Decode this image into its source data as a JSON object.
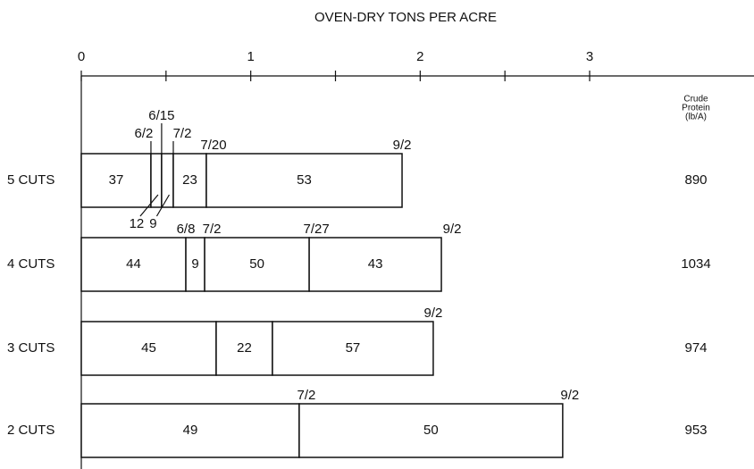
{
  "chart_data": {
    "type": "stacked-bar-horizontal",
    "title": "OVEN-DRY TONS PER ACRE",
    "xlim": [
      0,
      3.97
    ],
    "xticks": [
      0,
      1,
      2,
      3
    ],
    "minor_xticks": [
      0.5,
      1.5,
      2.5
    ],
    "categories": [
      "5 CUTS",
      "4 CUTS",
      "3 CUTS",
      "2 CUTS"
    ],
    "bars": [
      {
        "values": [
          0.411,
          0.063,
          0.069,
          0.195,
          1.155
        ],
        "dates": [
          "6/2",
          "6/15",
          "7/2",
          "7/20",
          "9/2"
        ],
        "labels": [
          37,
          12,
          9,
          23,
          53
        ]
      },
      {
        "values": [
          0.617,
          0.111,
          0.617,
          0.78
        ],
        "dates": [
          "6/8",
          "7/2",
          "7/27",
          "9/2"
        ],
        "labels": [
          44,
          9,
          50,
          43
        ]
      },
      {
        "values": [
          0.796,
          0.332,
          0.949
        ],
        "dates": [
          null,
          null,
          "9/2"
        ],
        "labels": [
          45,
          22,
          57
        ]
      },
      {
        "values": [
          1.286,
          1.555
        ],
        "dates": [
          "7/2",
          "9/2"
        ],
        "labels": [
          49,
          50
        ]
      }
    ],
    "protein_header": [
      "Crude",
      "Protein",
      "(lb/A)"
    ],
    "protein_values": [
      890,
      1034,
      974,
      953
    ]
  }
}
